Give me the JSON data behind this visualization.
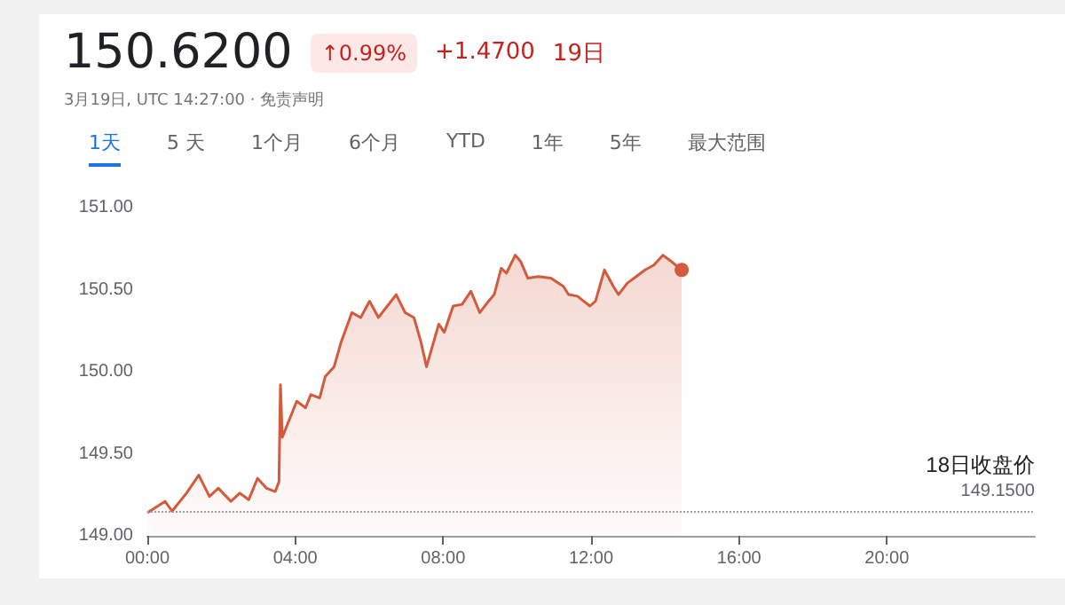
{
  "chart_data": {
    "type": "area",
    "title": "150.6200",
    "subtitle": "3月19日, UTC 14:27:00 · 免责声明",
    "annotations": [
      "↑0.99%",
      "+1.4700",
      "19日",
      "1天",
      "5 天",
      "1个月",
      "6个月",
      "YTD",
      "1年",
      "5年",
      "最大范围"
    ],
    "series": [
      {
        "color": "#d35a3c",
        "x": [
          0,
          0.48,
          0.67,
          1.06,
          1.39,
          1.68,
          1.92,
          2.26,
          2.5,
          2.74,
          2.98,
          3.22,
          3.46,
          3.56,
          3.6,
          3.65,
          4.04,
          4.28,
          4.42,
          4.66,
          4.81,
          5.05,
          5.24,
          5.53,
          5.77,
          6.01,
          6.25,
          6.49,
          6.73,
          6.97,
          7.21,
          7.4,
          7.55,
          7.69,
          7.88,
          8.03,
          8.27,
          8.51,
          8.75,
          8.99,
          9.23,
          9.38,
          9.57,
          9.71,
          9.95,
          10.1,
          10.29,
          10.58,
          10.91,
          11.25,
          11.39,
          11.63,
          11.97,
          12.12,
          12.36,
          12.6,
          12.74,
          12.98,
          13.22,
          13.46,
          13.7,
          13.94,
          14.18,
          14.45
        ],
        "values": [
          149.14,
          149.21,
          149.15,
          149.26,
          149.37,
          149.24,
          149.29,
          149.21,
          149.26,
          149.22,
          149.35,
          149.29,
          149.27,
          149.33,
          149.92,
          149.6,
          149.82,
          149.78,
          149.86,
          149.84,
          149.97,
          150.03,
          150.18,
          150.36,
          150.33,
          150.43,
          150.33,
          150.4,
          150.47,
          150.36,
          150.33,
          150.18,
          150.03,
          150.14,
          150.29,
          150.24,
          150.4,
          150.41,
          150.49,
          150.36,
          150.43,
          150.47,
          150.63,
          150.6,
          150.71,
          150.67,
          150.57,
          150.58,
          150.57,
          150.52,
          150.47,
          150.46,
          150.4,
          150.43,
          150.62,
          150.52,
          150.47,
          150.54,
          150.58,
          150.62,
          150.65,
          150.71,
          150.67,
          150.62
        ]
      }
    ],
    "xlim": [
      0,
      24
    ],
    "xticks": [
      {
        "value": 0,
        "label": "00:00"
      },
      {
        "value": 4,
        "label": "04:00"
      },
      {
        "value": 8,
        "label": "08:00"
      },
      {
        "value": 12,
        "label": "12:00"
      },
      {
        "value": 16,
        "label": "16:00"
      },
      {
        "value": 20,
        "label": "20:00"
      }
    ],
    "ylim": [
      149,
      151
    ],
    "yticks": [
      {
        "value": 149,
        "label": "149.00"
      },
      {
        "value": 149.5,
        "label": "149.50"
      },
      {
        "value": 150,
        "label": "150.00"
      },
      {
        "value": 150.5,
        "label": "150.50"
      },
      {
        "value": 151,
        "label": "151.00"
      }
    ],
    "ref_lines": [
      {
        "axis": "y",
        "value": 149.15,
        "label": "18日收盘价\n149.1500",
        "color": "#9e9e9e",
        "line_style": "dotted"
      }
    ],
    "grid": false
  }
}
